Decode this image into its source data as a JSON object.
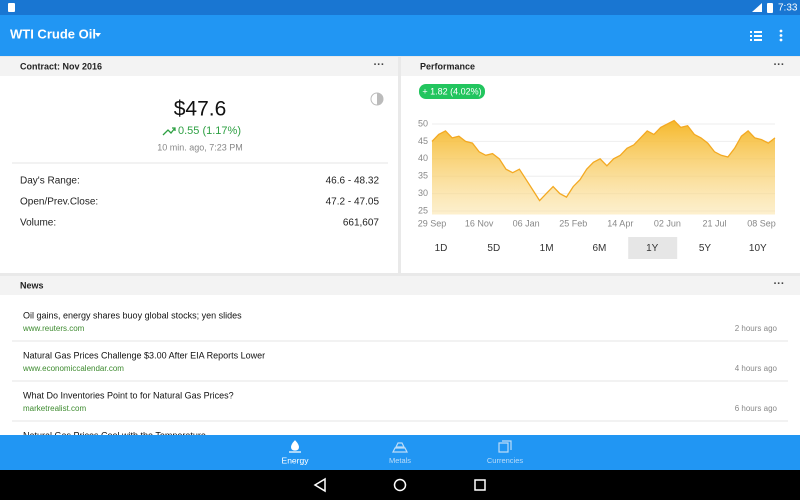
{
  "status_bar": {
    "time": "7:33"
  },
  "app_bar": {
    "title": "WTI Crude Oil"
  },
  "contract": {
    "header": "Contract:  Nov 2016",
    "price": "$47.6",
    "change": "0.55 (1.17%)",
    "updated": "10 min. ago, 7:23 PM",
    "rows": [
      [
        "Day's Range:",
        "46.6 - 48.32"
      ],
      [
        "Open/Prev.Close:",
        "47.2 - 47.05"
      ],
      [
        "Volume:",
        "661,607"
      ]
    ]
  },
  "performance": {
    "header": "Performance",
    "badge": "+ 1.82 (4.02%)",
    "chart": {
      "type": "area",
      "color": "#f3a922",
      "categories": [
        "29 Sep",
        null,
        null,
        null,
        null,
        null,
        null,
        "16 Nov",
        null,
        null,
        null,
        null,
        null,
        null,
        "06 Jan",
        null,
        null,
        null,
        null,
        null,
        null,
        "25 Feb",
        null,
        null,
        null,
        null,
        null,
        null,
        "14 Apr",
        null,
        null,
        null,
        null,
        null,
        null,
        "02 Jun",
        null,
        null,
        null,
        null,
        null,
        null,
        "21 Jul",
        null,
        null,
        null,
        null,
        null,
        null,
        "08 Sep",
        null,
        null
      ],
      "values": [
        45,
        47,
        48,
        46,
        46.5,
        45,
        44.5,
        42,
        41,
        41.5,
        40,
        37,
        36,
        37,
        34,
        31,
        28,
        30,
        32,
        30,
        29,
        32,
        34,
        37,
        39,
        40,
        38,
        40,
        41,
        43,
        44,
        46,
        48,
        47,
        49,
        50,
        51,
        49,
        49.5,
        47,
        46,
        44.5,
        42,
        41,
        40.5,
        43,
        46.5,
        48,
        46,
        45.5,
        44.5,
        46
      ],
      "ylim": [
        24,
        52
      ],
      "yticks": [
        25,
        30,
        35,
        40,
        45,
        50
      ],
      "grid": true
    },
    "ranges": [
      "1D",
      "5D",
      "1M",
      "6M",
      "1Y",
      "5Y",
      "10Y"
    ],
    "selected_range": 4
  },
  "news": {
    "header": "News",
    "items": [
      {
        "title": "Oil gains, energy shares buoy global stocks; yen slides",
        "source": "www.reuters.com",
        "time": "2 hours ago"
      },
      {
        "title": "Natural Gas Prices Challenge $3.00 After EIA Reports Lower",
        "source": "www.economiccalendar.com",
        "time": "4 hours ago"
      },
      {
        "title": "What Do Inventories Point to for Natural Gas Prices?",
        "source": "marketrealist.com",
        "time": "6 hours ago"
      },
      {
        "title": "Natural Gas Prices Cool with the Temperature"
      }
    ]
  },
  "bottom_nav": {
    "items": [
      "Energy",
      "Metals",
      "Currencies"
    ],
    "selected": 0
  }
}
